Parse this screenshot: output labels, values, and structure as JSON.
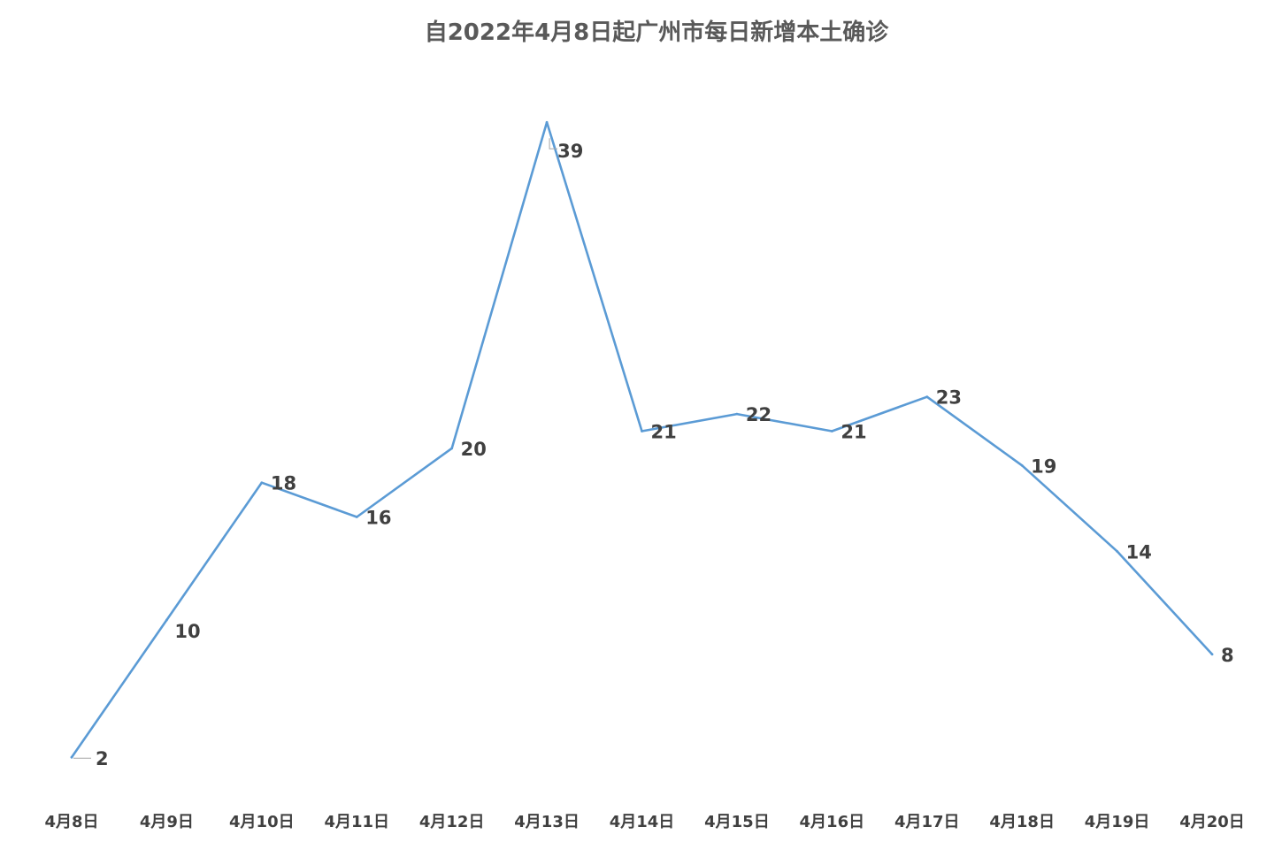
{
  "chart_data": {
    "type": "line",
    "title": "自2022年4月8日起广州市每日新增本土确诊",
    "xlabel": "",
    "ylabel": "",
    "categories": [
      "4月8日",
      "4月9日",
      "4月10日",
      "4月11日",
      "4月12日",
      "4月13日",
      "4月14日",
      "4月15日",
      "4月16日",
      "4月17日",
      "4月18日",
      "4月19日",
      "4月20日"
    ],
    "series": [
      {
        "values": [
          2,
          10,
          18,
          16,
          20,
          39,
          21,
          22,
          21,
          23,
          19,
          14,
          8
        ],
        "color": "#5b9bd5"
      }
    ],
    "ylim": [
      0,
      42
    ],
    "grid": false,
    "legend": "none",
    "data_labels": true
  }
}
